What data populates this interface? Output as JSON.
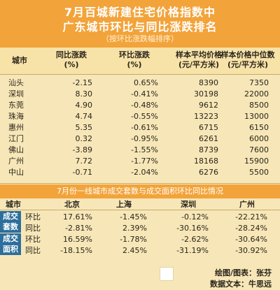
{
  "header": {
    "title_line1": "7月百城新建住宅价格指数中",
    "title_line2": "广东城市环比与同比涨跌排名",
    "note": "（按环比涨跌幅排序）"
  },
  "table1": {
    "headers": {
      "city": "城市",
      "yoy_line1": "同比涨跌",
      "yoy_line2": "(%)",
      "mom_line1": "环比涨跌",
      "mom_line2": "(%)",
      "avg_line1": "样本平均价格",
      "avg_line2": "(元/平方米)",
      "med_line1": "样本价格中位数",
      "med_line2": "(元/平方米)"
    },
    "rows": [
      {
        "city": "汕头",
        "yoy": "-2.15",
        "mom": "0.65%",
        "avg": "8390",
        "median": "7350"
      },
      {
        "city": "深圳",
        "yoy": "8.30",
        "mom": "-0.41%",
        "avg": "30198",
        "median": "22000"
      },
      {
        "city": "东莞",
        "yoy": "4.90",
        "mom": "-0.48%",
        "avg": "9612",
        "median": "8500"
      },
      {
        "city": "珠海",
        "yoy": "4.74",
        "mom": "-0.55%",
        "avg": "13223",
        "median": "13000"
      },
      {
        "city": "惠州",
        "yoy": "5.35",
        "mom": "-0.61%",
        "avg": "6715",
        "median": "6150"
      },
      {
        "city": "江门",
        "yoy": "0.32",
        "mom": "-0.95%",
        "avg": "6261",
        "median": "6000"
      },
      {
        "city": "佛山",
        "yoy": "-3.89",
        "mom": "-1.55%",
        "avg": "8739",
        "median": "7600"
      },
      {
        "city": "广州",
        "yoy": "7.72",
        "mom": "-1.77%",
        "avg": "18168",
        "median": "15900"
      },
      {
        "city": "中山",
        "yoy": "-0.71",
        "mom": "-2.04%",
        "avg": "6276",
        "median": "5500"
      }
    ]
  },
  "table2": {
    "title": "7月份一线城市成交套数与成交面积环比同比情况",
    "headers": {
      "city": "城市",
      "bj": "北京",
      "sh": "上海",
      "sz": "深圳",
      "gz": "广州"
    },
    "group1_line1": "成交",
    "group1_line2": "套数",
    "group2_line1": "成交",
    "group2_line2": "面积",
    "rows": [
      {
        "label": "环比",
        "bj": "17.61%",
        "sh": "-1.45%",
        "sz": "-0.12%",
        "gz": "-22.21%"
      },
      {
        "label": "同比",
        "bj": "-2.81%",
        "sh": "2.39%",
        "sz": "-30.16%",
        "gz": "-28.24%"
      },
      {
        "label": "环比",
        "bj": "16.59%",
        "sh": "-1.78%",
        "sz": "-2.62%",
        "gz": "-30.64%"
      },
      {
        "label": "同比",
        "bj": "-18.15%",
        "sh": "2.45%",
        "sz": "-31.19%",
        "gz": "-30.92%"
      }
    ]
  },
  "credits": {
    "line1": "绘图/图表：张芬",
    "line2": "数据文本：牛思远"
  },
  "colors": {
    "header_orange": "#f2a33a",
    "group_blue": "#2c6e9c",
    "background": "#f7e7b8"
  }
}
